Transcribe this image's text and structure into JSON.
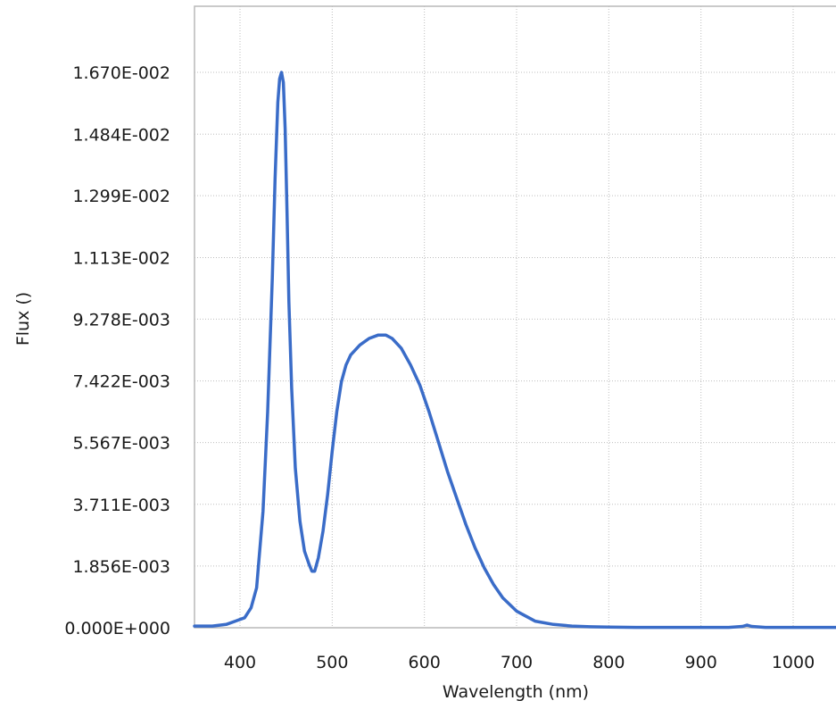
{
  "chart_data": {
    "type": "line",
    "title": "",
    "xlabel": "Wavelength (nm)",
    "ylabel": "Flux ()",
    "xlim": [
      350,
      1050
    ],
    "ylim": [
      0,
      0.0185
    ],
    "grid": true,
    "legend": "none",
    "x_ticks": [
      400,
      500,
      600,
      700,
      800,
      900,
      1000
    ],
    "x_tick_labels": [
      "400",
      "500",
      "600",
      "700",
      "800",
      "900",
      "1000"
    ],
    "y_ticks": [
      0,
      0.001856,
      0.003711,
      0.005567,
      0.007422,
      0.009278,
      0.01113,
      0.01299,
      0.01484,
      0.0167
    ],
    "y_tick_labels": [
      "0.000E+000",
      "1.856E-003",
      "3.711E-003",
      "5.567E-003",
      "7.422E-003",
      "9.278E-003",
      "1.113E-002",
      "1.299E-002",
      "1.484E-002",
      "1.670E-002"
    ],
    "series": [
      {
        "color": "#3a6cc8",
        "x": [
          350,
          370,
          385,
          395,
          405,
          412,
          418,
          425,
          430,
          435,
          438,
          441,
          443,
          445,
          447,
          449,
          451,
          453,
          456,
          460,
          465,
          470,
          475,
          478,
          481,
          485,
          490,
          495,
          500,
          505,
          510,
          515,
          520,
          530,
          540,
          550,
          558,
          565,
          575,
          585,
          595,
          605,
          615,
          625,
          635,
          645,
          655,
          665,
          675,
          685,
          700,
          720,
          740,
          760,
          780,
          800,
          830,
          850,
          870,
          900,
          930,
          945,
          950,
          955,
          970,
          1000,
          1050
        ],
        "y": [
          5e-05,
          5e-05,
          0.0001,
          0.0002,
          0.0003,
          0.0006,
          0.0012,
          0.0035,
          0.0065,
          0.0105,
          0.0135,
          0.0158,
          0.0165,
          0.0167,
          0.0164,
          0.015,
          0.0125,
          0.0098,
          0.0072,
          0.0048,
          0.0032,
          0.0023,
          0.0019,
          0.0017,
          0.0017,
          0.0021,
          0.0029,
          0.004,
          0.0053,
          0.0065,
          0.0074,
          0.0079,
          0.0082,
          0.0085,
          0.0087,
          0.0088,
          0.0088,
          0.0087,
          0.0084,
          0.0079,
          0.0073,
          0.0065,
          0.0056,
          0.0047,
          0.0039,
          0.0031,
          0.0024,
          0.0018,
          0.0013,
          0.0009,
          0.0005,
          0.0002,
          0.0001,
          5e-05,
          3e-05,
          2e-05,
          1e-05,
          1e-05,
          1e-05,
          1e-05,
          1e-05,
          4e-05,
          8e-05,
          4e-05,
          1e-05,
          1e-05,
          1e-05
        ]
      }
    ]
  }
}
